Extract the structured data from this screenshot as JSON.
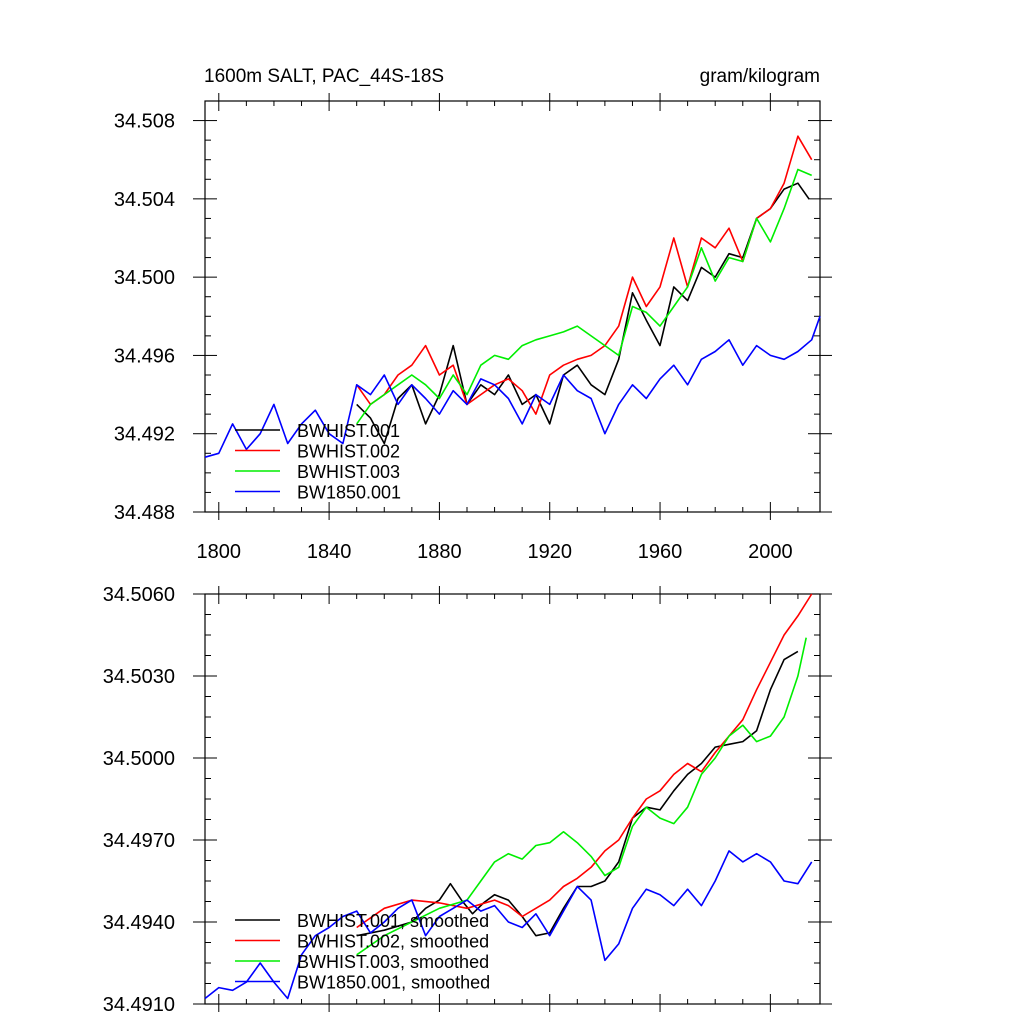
{
  "chart_data": [
    {
      "type": "line",
      "title": "1600m SALT, PAC_44S-18S",
      "units": "gram/kilogram",
      "xlabel": "",
      "ylabel": "",
      "xlim": [
        1795,
        2018
      ],
      "ylim": [
        34.488,
        34.509
      ],
      "xticks": [
        1800,
        1840,
        1880,
        1920,
        1960,
        2000
      ],
      "yticks": [
        34.488,
        34.492,
        34.496,
        34.5,
        34.504,
        34.508
      ],
      "ytick_labels": [
        "34.488",
        "34.492",
        "34.496",
        "34.500",
        "34.504",
        "34.508"
      ],
      "grid": false,
      "legend_position": "bottom-left",
      "series": [
        {
          "name": "BWHIST.001",
          "color": "#000000",
          "x": [
            1850,
            1855,
            1860,
            1865,
            1870,
            1875,
            1880,
            1885,
            1890,
            1895,
            1900,
            1905,
            1910,
            1915,
            1920,
            1925,
            1930,
            1935,
            1940,
            1945,
            1950,
            1955,
            1960,
            1965,
            1970,
            1975,
            1980,
            1985,
            1990,
            1995,
            2000,
            2005,
            2010,
            2014
          ],
          "y": [
            34.4935,
            34.4928,
            34.4915,
            34.4938,
            34.4945,
            34.4925,
            34.494,
            34.4965,
            34.4935,
            34.4945,
            34.494,
            34.495,
            34.4935,
            34.494,
            34.4925,
            34.495,
            34.4955,
            34.4945,
            34.494,
            34.4958,
            34.4992,
            34.4978,
            34.4965,
            34.4995,
            34.4988,
            34.5005,
            34.5,
            34.5012,
            34.501,
            34.503,
            34.5035,
            34.5045,
            34.5048,
            34.504
          ]
        },
        {
          "name": "BWHIST.002",
          "color": "#ff0000",
          "x": [
            1850,
            1855,
            1860,
            1865,
            1870,
            1875,
            1880,
            1885,
            1890,
            1895,
            1900,
            1905,
            1910,
            1915,
            1920,
            1925,
            1930,
            1935,
            1940,
            1945,
            1950,
            1955,
            1960,
            1965,
            1970,
            1975,
            1980,
            1985,
            1990,
            1995,
            2000,
            2005,
            2010,
            2015
          ],
          "y": [
            34.4945,
            34.4935,
            34.494,
            34.495,
            34.4955,
            34.4965,
            34.495,
            34.4955,
            34.4935,
            34.494,
            34.4945,
            34.4948,
            34.4942,
            34.493,
            34.495,
            34.4955,
            34.4958,
            34.496,
            34.4965,
            34.4975,
            34.5,
            34.4985,
            34.4995,
            34.502,
            34.4995,
            34.502,
            34.5015,
            34.5025,
            34.5008,
            34.503,
            34.5035,
            34.5048,
            34.5072,
            34.506
          ]
        },
        {
          "name": "BWHIST.003",
          "color": "#00ee00",
          "x": [
            1850,
            1855,
            1860,
            1865,
            1870,
            1875,
            1880,
            1885,
            1890,
            1895,
            1900,
            1905,
            1910,
            1915,
            1920,
            1925,
            1930,
            1935,
            1940,
            1945,
            1950,
            1955,
            1960,
            1965,
            1970,
            1975,
            1980,
            1985,
            1990,
            1995,
            2000,
            2005,
            2010,
            2015
          ],
          "y": [
            34.4925,
            34.4935,
            34.494,
            34.4945,
            34.495,
            34.4945,
            34.4938,
            34.495,
            34.494,
            34.4955,
            34.496,
            34.4958,
            34.4965,
            34.4968,
            34.497,
            34.4972,
            34.4975,
            34.497,
            34.4965,
            34.496,
            34.4985,
            34.4982,
            34.4975,
            34.4985,
            34.4995,
            34.5015,
            34.4998,
            34.501,
            34.5008,
            34.503,
            34.5018,
            34.5035,
            34.5055,
            34.5052
          ]
        },
        {
          "name": "BW1850.001",
          "color": "#0000ff",
          "x": [
            1795,
            1800,
            1805,
            1810,
            1815,
            1820,
            1825,
            1830,
            1835,
            1840,
            1845,
            1850,
            1855,
            1860,
            1865,
            1870,
            1875,
            1880,
            1885,
            1890,
            1895,
            1900,
            1905,
            1910,
            1915,
            1920,
            1925,
            1930,
            1935,
            1940,
            1945,
            1950,
            1955,
            1960,
            1965,
            1970,
            1975,
            1980,
            1985,
            1990,
            1995,
            2000,
            2005,
            2010,
            2015,
            2018
          ],
          "y": [
            34.4908,
            34.491,
            34.4925,
            34.4912,
            34.492,
            34.4935,
            34.4915,
            34.4925,
            34.4932,
            34.492,
            34.4915,
            34.4945,
            34.494,
            34.495,
            34.4935,
            34.4945,
            34.4938,
            34.493,
            34.4942,
            34.4935,
            34.4948,
            34.4945,
            34.4938,
            34.4925,
            34.494,
            34.4935,
            34.495,
            34.4942,
            34.4938,
            34.492,
            34.4935,
            34.4945,
            34.4938,
            34.4948,
            34.4955,
            34.4945,
            34.4958,
            34.4962,
            34.4968,
            34.4955,
            34.4965,
            34.496,
            34.4958,
            34.4962,
            34.4968,
            34.498
          ]
        }
      ]
    },
    {
      "type": "line",
      "title": "",
      "xlabel": "",
      "ylabel": "",
      "xlim": [
        1795,
        2018
      ],
      "ylim": [
        34.491,
        34.506
      ],
      "xticks": [
        1800,
        1840,
        1880,
        1920,
        1960,
        2000
      ],
      "yticks": [
        34.491,
        34.494,
        34.497,
        34.5,
        34.503,
        34.506
      ],
      "ytick_labels": [
        "34.4910",
        "34.4940",
        "34.4970",
        "34.5000",
        "34.5030",
        "34.5060"
      ],
      "grid": false,
      "legend_position": "bottom-left",
      "series": [
        {
          "name": "BWHIST.001, smoothed",
          "color": "#000000",
          "x": [
            1850,
            1860,
            1870,
            1875,
            1880,
            1884,
            1888,
            1892,
            1896,
            1900,
            1905,
            1910,
            1915,
            1920,
            1925,
            1930,
            1935,
            1940,
            1945,
            1950,
            1955,
            1960,
            1965,
            1970,
            1975,
            1980,
            1985,
            1990,
            1995,
            2000,
            2005,
            2010
          ],
          "y": [
            34.4935,
            34.4937,
            34.494,
            34.4945,
            34.4948,
            34.4954,
            34.4948,
            34.4943,
            34.4947,
            34.495,
            34.4948,
            34.4942,
            34.4935,
            34.4936,
            34.4945,
            34.4953,
            34.4953,
            34.4955,
            34.4962,
            34.4978,
            34.4982,
            34.4981,
            34.4988,
            34.4994,
            34.4998,
            34.5004,
            34.5005,
            34.5006,
            34.501,
            34.5025,
            34.5036,
            34.5039
          ]
        },
        {
          "name": "BWHIST.002, smoothed",
          "color": "#ff0000",
          "x": [
            1850,
            1860,
            1870,
            1880,
            1890,
            1900,
            1905,
            1910,
            1915,
            1920,
            1925,
            1930,
            1935,
            1940,
            1945,
            1950,
            1955,
            1960,
            1965,
            1970,
            1975,
            1980,
            1985,
            1990,
            1995,
            2000,
            2005,
            2010,
            2015
          ],
          "y": [
            34.4938,
            34.4945,
            34.4948,
            34.4947,
            34.4945,
            34.4948,
            34.4946,
            34.4942,
            34.4945,
            34.4948,
            34.4953,
            34.4956,
            34.496,
            34.4966,
            34.497,
            34.4978,
            34.4985,
            34.4988,
            34.4994,
            34.4998,
            34.4995,
            34.5002,
            34.5008,
            34.5014,
            34.5025,
            34.5035,
            34.5045,
            34.5052,
            34.506
          ]
        },
        {
          "name": "BWHIST.003, smoothed",
          "color": "#00ee00",
          "x": [
            1850,
            1860,
            1870,
            1880,
            1890,
            1895,
            1900,
            1905,
            1910,
            1915,
            1920,
            1925,
            1930,
            1935,
            1940,
            1945,
            1950,
            1955,
            1960,
            1965,
            1970,
            1975,
            1980,
            1985,
            1990,
            1995,
            2000,
            2005,
            2010,
            2013
          ],
          "y": [
            34.4928,
            34.4935,
            34.494,
            34.4945,
            34.4948,
            34.4955,
            34.4962,
            34.4965,
            34.4963,
            34.4968,
            34.4969,
            34.4973,
            34.4969,
            34.4964,
            34.4957,
            34.496,
            34.4975,
            34.4982,
            34.4978,
            34.4976,
            34.4982,
            34.4994,
            34.5,
            34.5008,
            34.5012,
            34.5006,
            34.5008,
            34.5015,
            34.503,
            34.5044
          ]
        },
        {
          "name": "BW1850.001, smoothed",
          "color": "#0000ff",
          "x": [
            1795,
            1800,
            1805,
            1810,
            1815,
            1820,
            1825,
            1830,
            1835,
            1840,
            1845,
            1850,
            1855,
            1860,
            1865,
            1870,
            1875,
            1880,
            1885,
            1890,
            1895,
            1900,
            1905,
            1910,
            1915,
            1920,
            1925,
            1930,
            1935,
            1940,
            1945,
            1950,
            1955,
            1960,
            1965,
            1970,
            1975,
            1980,
            1985,
            1990,
            1995,
            2000,
            2005,
            2010,
            2015
          ],
          "y": [
            34.4912,
            34.4916,
            34.4915,
            34.4918,
            34.4925,
            34.4918,
            34.4912,
            34.4928,
            34.4935,
            34.4938,
            34.4942,
            34.4944,
            34.4936,
            34.494,
            34.4945,
            34.4948,
            34.4935,
            34.4942,
            34.4945,
            34.4948,
            34.4944,
            34.4946,
            34.494,
            34.4938,
            34.4943,
            34.4935,
            34.4944,
            34.4953,
            34.4948,
            34.4926,
            34.4932,
            34.4945,
            34.4952,
            34.495,
            34.4946,
            34.4952,
            34.4946,
            34.4955,
            34.4966,
            34.4962,
            34.4965,
            34.4962,
            34.4955,
            34.4954,
            34.4962
          ]
        }
      ]
    }
  ]
}
